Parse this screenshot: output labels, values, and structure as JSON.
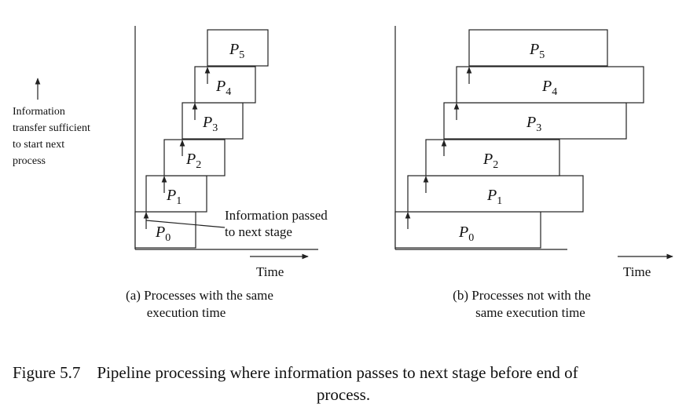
{
  "legend": {
    "icon": "up-arrow-icon",
    "lines": [
      "Information",
      "transfer sufficient",
      "to start next",
      "process"
    ]
  },
  "panel_a": {
    "callout_lines": [
      "Information passed",
      "to next stage"
    ],
    "axis_label": "Time",
    "caption_lines": [
      "(a) Processes with the same",
      "execution time"
    ],
    "processes": [
      {
        "name": "P",
        "sub": "0"
      },
      {
        "name": "P",
        "sub": "1"
      },
      {
        "name": "P",
        "sub": "2"
      },
      {
        "name": "P",
        "sub": "3"
      },
      {
        "name": "P",
        "sub": "4"
      },
      {
        "name": "P",
        "sub": "5"
      }
    ]
  },
  "panel_b": {
    "axis_label": "Time",
    "caption_lines": [
      "(b) Processes not with the",
      "same execution time"
    ],
    "processes": [
      {
        "name": "P",
        "sub": "0"
      },
      {
        "name": "P",
        "sub": "1"
      },
      {
        "name": "P",
        "sub": "2"
      },
      {
        "name": "P",
        "sub": "3"
      },
      {
        "name": "P",
        "sub": "4"
      },
      {
        "name": "P",
        "sub": "5"
      }
    ]
  },
  "figure_caption": {
    "line1": "Figure 5.7    Pipeline processing where information passes to next stage before end of",
    "line2": "process."
  }
}
